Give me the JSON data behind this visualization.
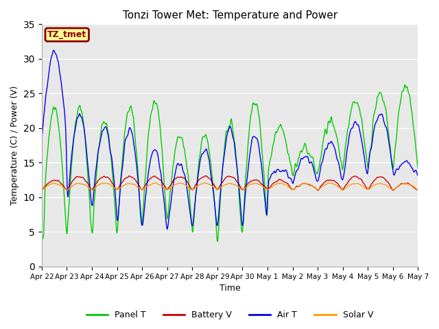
{
  "title": "Tonzi Tower Met: Temperature and Power",
  "xlabel": "Time",
  "ylabel": "Temperature (C) / Power (V)",
  "ylim": [
    0,
    35
  ],
  "yticks": [
    0,
    5,
    10,
    15,
    20,
    25,
    30,
    35
  ],
  "label_text": "TZ_tmet",
  "label_bg": "#FFFF99",
  "label_border": "#8B0000",
  "label_text_color": "#8B0000",
  "bg_color": "#E8E8E8",
  "fig_bg": "#FFFFFF",
  "line_colors": {
    "panel_t": "#00CC00",
    "battery_v": "#CC0000",
    "air_t": "#0000EE",
    "solar_v": "#FF9900"
  },
  "legend_labels": [
    "Panel T",
    "Battery V",
    "Air T",
    "Solar V"
  ],
  "xtick_labels": [
    "Apr 22",
    "Apr 23",
    "Apr 24",
    "Apr 25",
    "Apr 26",
    "Apr 27",
    "Apr 28",
    "Apr 29",
    "Apr 30",
    "May 1",
    "May 2",
    "May 3",
    "May 4",
    "May 5",
    "May 6",
    "May 7"
  ]
}
